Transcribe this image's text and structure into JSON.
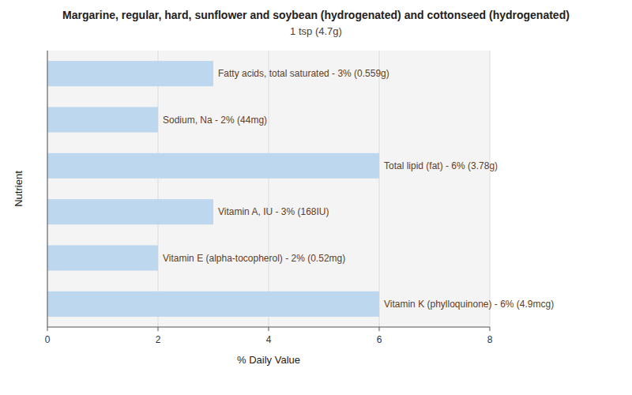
{
  "chart_data": {
    "type": "bar",
    "orientation": "horizontal",
    "title": "Margarine, regular, hard, sunflower and soybean (hydrogenated) and cottonseed (hydrogenated)",
    "subtitle": "1 tsp (4.7g)",
    "categories": [
      "Fatty acids, total saturated - 3% (0.559g)",
      "Sodium, Na - 2% (44mg)",
      "Total lipid (fat) - 6% (3.78g)",
      "Vitamin A, IU - 3% (168IU)",
      "Vitamin E (alpha-tocopherol) - 2% (0.52mg)",
      "Vitamin K (phylloquinone) - 6% (4.9mcg)"
    ],
    "values": [
      3,
      2,
      6,
      3,
      2,
      6
    ],
    "color": "#bdd7ee",
    "x_label": "% Daily Value",
    "y_label": "Nutrient",
    "xlim": [
      0,
      8
    ],
    "xticks": [
      0,
      2,
      4,
      6,
      8
    ],
    "grid": true
  }
}
